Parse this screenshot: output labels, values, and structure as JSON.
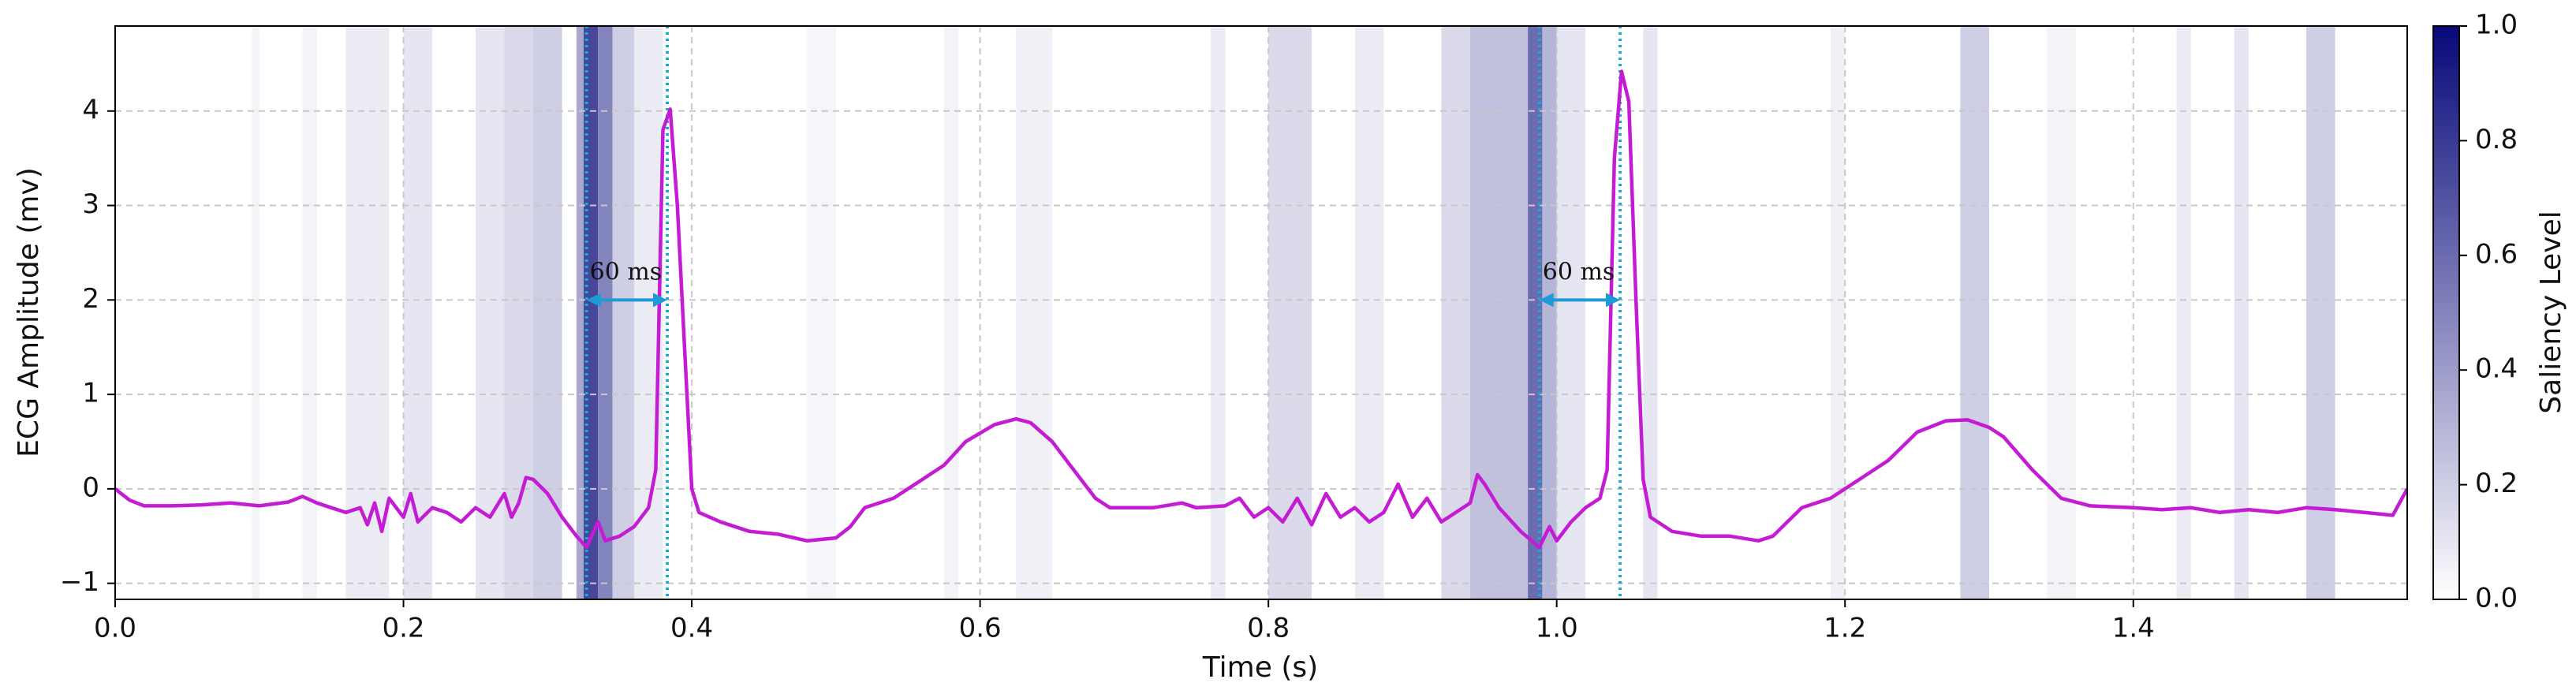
{
  "chart_data": {
    "type": "line",
    "xlabel": "Time (s)",
    "ylabel": "ECG Amplitude (mv)",
    "color": "#c41bd4",
    "grid": true,
    "xlim": [
      0,
      1.59
    ],
    "ylim": [
      -1.17,
      4.9
    ],
    "xticks": [
      {
        "value": 0,
        "label": "0.0"
      },
      0.2,
      0.4,
      0.6,
      0.8,
      {
        "value": 1,
        "label": "1.0"
      },
      1.2,
      1.4
    ],
    "yticks": [
      {
        "value": -1,
        "label": "−1"
      },
      0,
      1,
      2,
      3,
      4
    ],
    "x": [
      0.0,
      0.01,
      0.02,
      0.04,
      0.06,
      0.08,
      0.1,
      0.12,
      0.13,
      0.14,
      0.15,
      0.16,
      0.17,
      0.175,
      0.18,
      0.185,
      0.19,
      0.2,
      0.205,
      0.21,
      0.22,
      0.23,
      0.24,
      0.25,
      0.26,
      0.27,
      0.275,
      0.28,
      0.285,
      0.29,
      0.3,
      0.31,
      0.32,
      0.327,
      0.335,
      0.34,
      0.35,
      0.36,
      0.37,
      0.375,
      0.38,
      0.385,
      0.39,
      0.395,
      0.4,
      0.405,
      0.42,
      0.44,
      0.46,
      0.48,
      0.5,
      0.51,
      0.52,
      0.54,
      0.56,
      0.575,
      0.59,
      0.61,
      0.625,
      0.635,
      0.65,
      0.67,
      0.68,
      0.69,
      0.72,
      0.74,
      0.75,
      0.77,
      0.78,
      0.79,
      0.8,
      0.81,
      0.82,
      0.83,
      0.84,
      0.85,
      0.86,
      0.87,
      0.88,
      0.89,
      0.9,
      0.91,
      0.92,
      0.94,
      0.945,
      0.95,
      0.96,
      0.975,
      0.988,
      0.995,
      1.0,
      1.01,
      1.02,
      1.03,
      1.035,
      1.04,
      1.045,
      1.05,
      1.055,
      1.06,
      1.065,
      1.08,
      1.1,
      1.12,
      1.14,
      1.15,
      1.17,
      1.19,
      1.21,
      1.23,
      1.25,
      1.27,
      1.285,
      1.3,
      1.31,
      1.33,
      1.35,
      1.37,
      1.4,
      1.42,
      1.44,
      1.46,
      1.48,
      1.5,
      1.52,
      1.54,
      1.56,
      1.58,
      1.59
    ],
    "values": [
      0.0,
      -0.12,
      -0.18,
      -0.18,
      -0.17,
      -0.15,
      -0.18,
      -0.14,
      -0.08,
      -0.15,
      -0.2,
      -0.25,
      -0.2,
      -0.38,
      -0.15,
      -0.45,
      -0.1,
      -0.3,
      -0.05,
      -0.35,
      -0.2,
      -0.25,
      -0.35,
      -0.2,
      -0.3,
      -0.05,
      -0.3,
      -0.15,
      0.12,
      0.1,
      -0.05,
      -0.3,
      -0.5,
      -0.62,
      -0.35,
      -0.55,
      -0.5,
      -0.4,
      -0.2,
      0.2,
      3.8,
      4.02,
      3.0,
      1.5,
      0.0,
      -0.25,
      -0.35,
      -0.45,
      -0.48,
      -0.55,
      -0.52,
      -0.4,
      -0.2,
      -0.1,
      0.1,
      0.25,
      0.5,
      0.68,
      0.74,
      0.7,
      0.5,
      0.1,
      -0.1,
      -0.2,
      -0.2,
      -0.15,
      -0.2,
      -0.18,
      -0.1,
      -0.3,
      -0.2,
      -0.35,
      -0.1,
      -0.38,
      -0.05,
      -0.3,
      -0.2,
      -0.35,
      -0.25,
      0.05,
      -0.3,
      -0.1,
      -0.35,
      -0.15,
      0.15,
      0.05,
      -0.2,
      -0.45,
      -0.62,
      -0.4,
      -0.55,
      -0.35,
      -0.2,
      -0.1,
      0.2,
      3.5,
      4.42,
      4.1,
      2.0,
      0.1,
      -0.3,
      -0.45,
      -0.5,
      -0.5,
      -0.55,
      -0.5,
      -0.2,
      -0.1,
      0.1,
      0.3,
      0.6,
      0.72,
      0.73,
      0.65,
      0.55,
      0.2,
      -0.1,
      -0.18,
      -0.2,
      -0.22,
      -0.2,
      -0.25,
      -0.22,
      -0.25,
      -0.2,
      -0.22,
      -0.25,
      -0.28,
      0.0
    ],
    "saliency": [
      {
        "x0": 0.095,
        "x1": 0.1,
        "level": 0.05
      },
      {
        "x0": 0.13,
        "x1": 0.14,
        "level": 0.05
      },
      {
        "x0": 0.16,
        "x1": 0.19,
        "level": 0.08
      },
      {
        "x0": 0.2,
        "x1": 0.22,
        "level": 0.1
      },
      {
        "x0": 0.25,
        "x1": 0.27,
        "level": 0.1
      },
      {
        "x0": 0.27,
        "x1": 0.29,
        "level": 0.15
      },
      {
        "x0": 0.29,
        "x1": 0.31,
        "level": 0.2
      },
      {
        "x0": 0.32,
        "x1": 0.325,
        "level": 0.35
      },
      {
        "x0": 0.325,
        "x1": 0.335,
        "level": 0.75
      },
      {
        "x0": 0.335,
        "x1": 0.345,
        "level": 0.5
      },
      {
        "x0": 0.345,
        "x1": 0.36,
        "level": 0.2
      },
      {
        "x0": 0.36,
        "x1": 0.38,
        "level": 0.08
      },
      {
        "x0": 0.48,
        "x1": 0.5,
        "level": 0.04
      },
      {
        "x0": 0.575,
        "x1": 0.585,
        "level": 0.05
      },
      {
        "x0": 0.625,
        "x1": 0.65,
        "level": 0.06
      },
      {
        "x0": 0.76,
        "x1": 0.77,
        "level": 0.08
      },
      {
        "x0": 0.8,
        "x1": 0.83,
        "level": 0.15
      },
      {
        "x0": 0.86,
        "x1": 0.88,
        "level": 0.08
      },
      {
        "x0": 0.92,
        "x1": 0.94,
        "level": 0.15
      },
      {
        "x0": 0.94,
        "x1": 0.98,
        "level": 0.25
      },
      {
        "x0": 0.98,
        "x1": 0.99,
        "level": 0.6
      },
      {
        "x0": 0.99,
        "x1": 1.0,
        "level": 0.3
      },
      {
        "x0": 1.0,
        "x1": 1.02,
        "level": 0.1
      },
      {
        "x0": 1.06,
        "x1": 1.07,
        "level": 0.1
      },
      {
        "x0": 1.19,
        "x1": 1.2,
        "level": 0.06
      },
      {
        "x0": 1.28,
        "x1": 1.3,
        "level": 0.2
      },
      {
        "x0": 1.34,
        "x1": 1.36,
        "level": 0.05
      },
      {
        "x0": 1.43,
        "x1": 1.44,
        "level": 0.08
      },
      {
        "x0": 1.47,
        "x1": 1.48,
        "level": 0.1
      },
      {
        "x0": 1.52,
        "x1": 1.54,
        "level": 0.2
      }
    ],
    "colormap": [
      "#ffffff",
      "#08087a"
    ],
    "clabel": "Saliency Level",
    "clim": [
      0,
      1
    ],
    "cticks": [
      {
        "value": 0,
        "label": "0.0"
      },
      0.2,
      0.4,
      0.6,
      0.8,
      {
        "value": 1,
        "label": "1.0"
      }
    ],
    "markers": [
      0.327,
      0.383,
      0.988,
      1.044
    ],
    "marker_color": "#12b0d0",
    "annotations": [
      {
        "text": "60 ms",
        "x0": 0.327,
        "x1": 0.383,
        "y": 2
      },
      {
        "text": "60 ms",
        "x0": 0.988,
        "x1": 1.044,
        "y": 2
      }
    ],
    "annotation_color": "#1e9ad6"
  }
}
